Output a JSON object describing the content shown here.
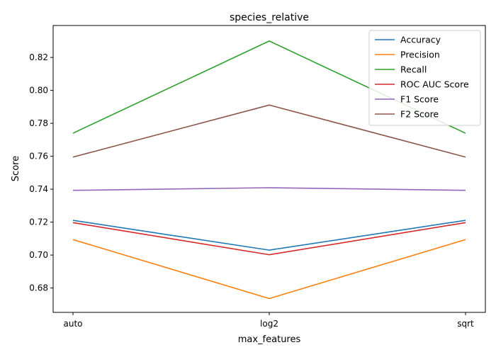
{
  "chart_data": {
    "type": "line",
    "title": "species_relative",
    "xlabel": "max_features",
    "ylabel": "Score",
    "categories": [
      "auto",
      "log2",
      "sqrt"
    ],
    "ylim": [
      0.6652,
      0.8394
    ],
    "yticks": [
      0.68,
      0.7,
      0.72,
      0.74,
      0.76,
      0.78,
      0.8,
      0.82
    ],
    "ytick_labels": [
      "0.68",
      "0.70",
      "0.72",
      "0.74",
      "0.76",
      "0.78",
      "0.80",
      "0.82"
    ],
    "grid": false,
    "legend_position": "top-right",
    "series": [
      {
        "name": "Accuracy",
        "color": "#1f77b4",
        "values": [
          0.7211,
          0.703,
          0.7211
        ]
      },
      {
        "name": "Precision",
        "color": "#ff7f0e",
        "values": [
          0.7094,
          0.6736,
          0.7094
        ]
      },
      {
        "name": "Recall",
        "color": "#2ca02c",
        "values": [
          0.774,
          0.83,
          0.774
        ]
      },
      {
        "name": "ROC AUC Score",
        "color": "#d62728",
        "values": [
          0.7197,
          0.7002,
          0.7197
        ]
      },
      {
        "name": "F1 Score",
        "color": "#9467bd",
        "values": [
          0.7393,
          0.7409,
          0.7393
        ]
      },
      {
        "name": "F2 Score",
        "color": "#8c564b",
        "values": [
          0.7595,
          0.7911,
          0.7595
        ]
      }
    ]
  }
}
